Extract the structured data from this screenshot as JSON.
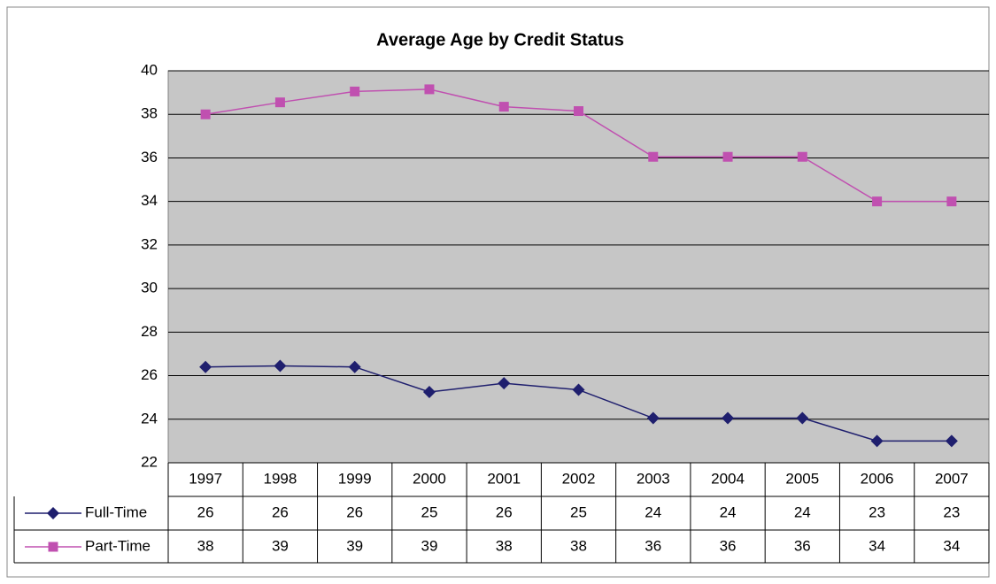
{
  "chart_data": {
    "type": "line",
    "title": "Average Age by Credit Status",
    "categories": [
      "1997",
      "1998",
      "1999",
      "2000",
      "2001",
      "2002",
      "2003",
      "2004",
      "2005",
      "2006",
      "2007"
    ],
    "series": [
      {
        "name": "Full-Time",
        "color": "#1f1f6e",
        "marker": "diamond",
        "values": [
          26.4,
          26.45,
          26.4,
          25.25,
          25.65,
          25.35,
          24.05,
          24.05,
          24.05,
          23.0,
          23.0
        ],
        "value_labels": [
          "26",
          "26",
          "26",
          "25",
          "26",
          "25",
          "24",
          "24",
          "24",
          "23",
          "23"
        ]
      },
      {
        "name": "Part-Time",
        "color": "#c050b0",
        "marker": "square",
        "values": [
          38.0,
          38.55,
          39.05,
          39.15,
          38.35,
          38.15,
          36.05,
          36.05,
          36.05,
          34.0,
          34.0
        ],
        "value_labels": [
          "38",
          "39",
          "39",
          "39",
          "38",
          "38",
          "36",
          "36",
          "36",
          "34",
          "34"
        ]
      }
    ],
    "ylim": [
      22,
      40
    ],
    "yticks": [
      22,
      24,
      26,
      28,
      30,
      32,
      34,
      36,
      38,
      40
    ],
    "grid": true
  }
}
